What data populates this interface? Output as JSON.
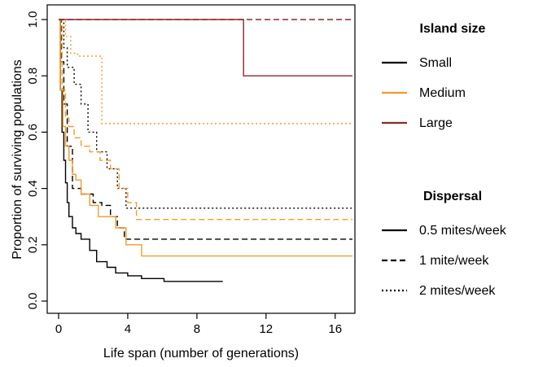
{
  "chart_data": {
    "type": "line",
    "title": "",
    "xlabel": "Life span (number of generations)",
    "ylabel": "Proportion of surviving populations",
    "xlim": [
      0,
      17
    ],
    "ylim": [
      0,
      1
    ],
    "x_ticks": [
      "0",
      "4",
      "8",
      "12",
      "16"
    ],
    "y_ticks": [
      "0.0",
      "0.2",
      "0.4",
      "0.6",
      "0.8",
      "1.0"
    ],
    "grid": false,
    "legend": {
      "placement": "right",
      "groups": [
        {
          "title": "Island size",
          "encoding": "color",
          "items": [
            {
              "label": "Small",
              "color": "#000000"
            },
            {
              "label": "Medium",
              "color": "#f39a2a"
            },
            {
              "label": "Large",
              "color": "#8b2a2a"
            }
          ]
        },
        {
          "title": "Dispersal",
          "encoding": "line style",
          "items": [
            {
              "label": "0.5 mites/week",
              "dash": "solid"
            },
            {
              "label": "1 mite/week",
              "dash": "dashed"
            },
            {
              "label": "2 mites/week",
              "dash": "dotted"
            }
          ]
        }
      ]
    },
    "series": [
      {
        "island_size": "Small",
        "dispersal": "0.5 mites/week",
        "color": "#000000",
        "dash": "solid",
        "x": [
          0,
          0.1,
          0.2,
          0.3,
          0.4,
          0.5,
          0.6,
          0.8,
          1.0,
          1.3,
          1.8,
          2.2,
          2.8,
          3.3,
          4.0,
          4.8,
          6.1,
          9.5
        ],
        "y": [
          1.0,
          0.75,
          0.6,
          0.5,
          0.42,
          0.35,
          0.3,
          0.26,
          0.24,
          0.22,
          0.18,
          0.14,
          0.12,
          0.1,
          0.09,
          0.08,
          0.07,
          0.07
        ]
      },
      {
        "island_size": "Small",
        "dispersal": "1 mite/week",
        "color": "#000000",
        "dash": "dashed",
        "x": [
          0,
          0.15,
          0.3,
          0.5,
          0.8,
          1.3,
          2.0,
          2.5,
          3.0,
          3.4,
          3.8,
          17
        ],
        "y": [
          1.0,
          0.85,
          0.7,
          0.55,
          0.4,
          0.38,
          0.35,
          0.34,
          0.3,
          0.26,
          0.22,
          0.22
        ]
      },
      {
        "island_size": "Small",
        "dispersal": "2 mites/week",
        "color": "#000000",
        "dash": "dotted",
        "x": [
          0,
          0.3,
          0.5,
          0.9,
          1.3,
          1.7,
          2.2,
          2.8,
          3.4,
          3.9,
          17
        ],
        "y": [
          1.0,
          0.9,
          0.83,
          0.77,
          0.7,
          0.6,
          0.53,
          0.47,
          0.4,
          0.33,
          0.33
        ]
      },
      {
        "island_size": "Medium",
        "dispersal": "0.5 mites/week",
        "color": "#f39a2a",
        "dash": "solid",
        "x": [
          0,
          0.1,
          0.25,
          0.4,
          0.6,
          0.8,
          1.0,
          1.3,
          1.8,
          2.3,
          3.3,
          3.9,
          4.8,
          17
        ],
        "y": [
          1.0,
          0.75,
          0.62,
          0.55,
          0.5,
          0.45,
          0.43,
          0.38,
          0.34,
          0.3,
          0.26,
          0.2,
          0.16,
          0.16
        ]
      },
      {
        "island_size": "Medium",
        "dispersal": "1 mite/week",
        "color": "#f39a2a",
        "dash": "dashed",
        "x": [
          0,
          0.2,
          0.4,
          0.6,
          0.9,
          1.3,
          1.8,
          2.4,
          3.0,
          3.5,
          4.0,
          4.5,
          17
        ],
        "y": [
          1.0,
          0.75,
          0.65,
          0.62,
          0.58,
          0.55,
          0.53,
          0.5,
          0.47,
          0.4,
          0.35,
          0.29,
          0.29
        ]
      },
      {
        "island_size": "Medium",
        "dispersal": "2 mites/week",
        "color": "#f39a2a",
        "dash": "dotted",
        "x": [
          0,
          0.4,
          0.7,
          1.1,
          2.5,
          17
        ],
        "y": [
          1.0,
          0.94,
          0.88,
          0.87,
          0.63,
          0.63
        ]
      },
      {
        "island_size": "Large",
        "dispersal": "0.5 mites/week",
        "color": "#8b2a2a",
        "dash": "solid",
        "x": [
          0,
          10.7,
          17
        ],
        "y": [
          1.0,
          0.8,
          0.8
        ]
      },
      {
        "island_size": "Large",
        "dispersal": "1 mite/week",
        "color": "#8b2a2a",
        "dash": "dashed",
        "x": [
          0,
          17
        ],
        "y": [
          1.0,
          1.0
        ]
      }
    ]
  }
}
